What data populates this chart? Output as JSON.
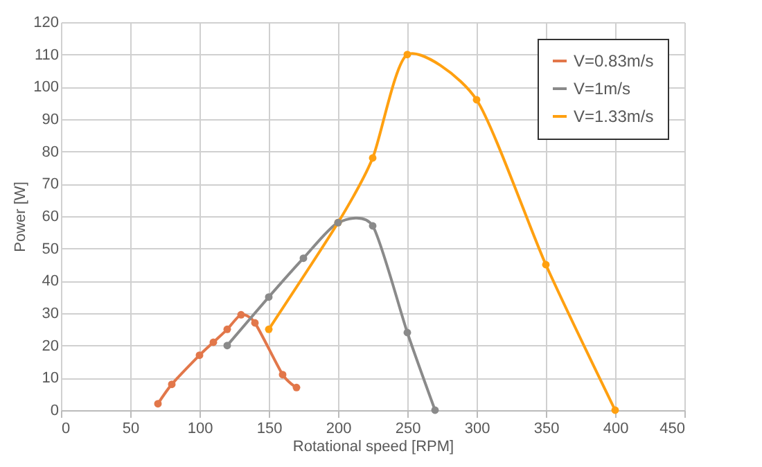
{
  "chart_data": {
    "type": "line",
    "xlabel": "Rotational speed [RPM]",
    "ylabel": "Power [W]",
    "xlim": [
      0,
      450
    ],
    "xticks": [
      0,
      50,
      100,
      150,
      200,
      250,
      300,
      350,
      400,
      450
    ],
    "ylim": [
      0,
      120
    ],
    "yticks": [
      0,
      10,
      20,
      30,
      40,
      50,
      60,
      70,
      80,
      90,
      100,
      110,
      120
    ],
    "grid": true,
    "legend": "top right",
    "marker": "circle",
    "series": [
      {
        "name": "V=0.83m/s",
        "color": "#e2774a",
        "x": [
          70,
          80,
          100,
          110,
          120,
          130,
          140,
          160,
          170
        ],
        "values": [
          2,
          8,
          17,
          21,
          25,
          29.5,
          27,
          11,
          7
        ]
      },
      {
        "name": "V=1m/s",
        "color": "#8a8a8a",
        "x": [
          120,
          150,
          175,
          200,
          225,
          250,
          270
        ],
        "values": [
          20,
          35,
          47,
          58,
          57,
          24,
          0
        ]
      },
      {
        "name": "V=1.33m/s",
        "color": "#ffa010",
        "x": [
          150,
          200,
          225,
          250,
          300,
          350,
          400
        ],
        "values": [
          25,
          58,
          78,
          110,
          96,
          45,
          0
        ]
      }
    ]
  }
}
